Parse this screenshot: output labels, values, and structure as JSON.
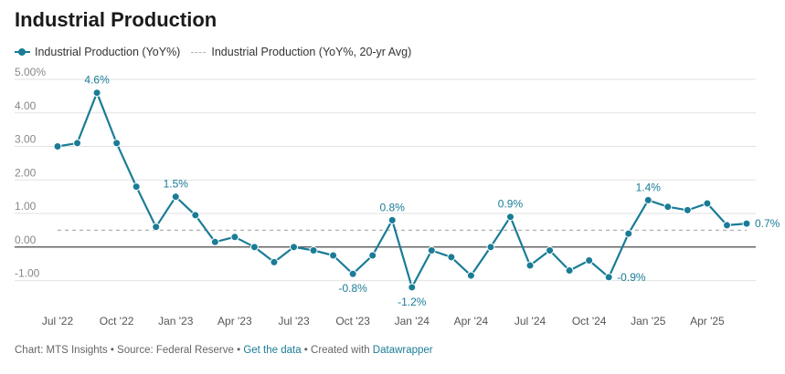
{
  "title": "Industrial Production",
  "legend": {
    "main": "Industrial Production (YoY%)",
    "avg": "Industrial Production (YoY%, 20-yr Avg)"
  },
  "colors": {
    "series": "#1a7c96",
    "average": "#b3b3b3",
    "grid": "#e2e2e2",
    "zero": "#333333",
    "text": "#333333",
    "muted": "#888888"
  },
  "chart_data": {
    "type": "line",
    "title": "Industrial Production",
    "ylim": [
      -1.8,
      5.0
    ],
    "yticks": [
      {
        "value": 5.0,
        "label": "5.00%"
      },
      {
        "value": 4.0,
        "label": "4.00"
      },
      {
        "value": 3.0,
        "label": "3.00"
      },
      {
        "value": 2.0,
        "label": "2.00"
      },
      {
        "value": 1.0,
        "label": "1.00"
      },
      {
        "value": 0.0,
        "label": "0.00"
      },
      {
        "value": -1.0,
        "label": "-1.00"
      }
    ],
    "xticks": [
      {
        "label": "Jul '22",
        "date": "2022-07"
      },
      {
        "label": "Oct '22",
        "date": "2022-10"
      },
      {
        "label": "Jan '23",
        "date": "2023-01"
      },
      {
        "label": "Apr '23",
        "date": "2023-04"
      },
      {
        "label": "Jul '23",
        "date": "2023-07"
      },
      {
        "label": "Oct '23",
        "date": "2023-10"
      },
      {
        "label": "Jan '24",
        "date": "2024-01"
      },
      {
        "label": "Apr '24",
        "date": "2024-04"
      },
      {
        "label": "Jul '24",
        "date": "2024-07"
      },
      {
        "label": "Oct '24",
        "date": "2024-10"
      },
      {
        "label": "Jan '25",
        "date": "2025-01"
      },
      {
        "label": "Apr '25",
        "date": "2025-04"
      }
    ],
    "series": [
      {
        "name": "Industrial Production (YoY%)",
        "points": [
          {
            "x": "2022-07",
            "y": 3.0
          },
          {
            "x": "2022-08",
            "y": 3.1
          },
          {
            "x": "2022-09",
            "y": 4.6,
            "label": "4.6%",
            "label_pos": "above"
          },
          {
            "x": "2022-10",
            "y": 3.1
          },
          {
            "x": "2022-11",
            "y": 1.8
          },
          {
            "x": "2022-12",
            "y": 0.6
          },
          {
            "x": "2023-01",
            "y": 1.5,
            "label": "1.5%",
            "label_pos": "above"
          },
          {
            "x": "2023-02",
            "y": 0.95
          },
          {
            "x": "2023-03",
            "y": 0.15
          },
          {
            "x": "2023-04",
            "y": 0.3
          },
          {
            "x": "2023-05",
            "y": 0.0
          },
          {
            "x": "2023-06",
            "y": -0.45
          },
          {
            "x": "2023-07",
            "y": 0.0
          },
          {
            "x": "2023-08",
            "y": -0.1
          },
          {
            "x": "2023-09",
            "y": -0.25
          },
          {
            "x": "2023-10",
            "y": -0.8,
            "label": "-0.8%",
            "label_pos": "below"
          },
          {
            "x": "2023-11",
            "y": -0.25
          },
          {
            "x": "2023-12",
            "y": 0.8,
            "label": "0.8%",
            "label_pos": "above"
          },
          {
            "x": "2024-01",
            "y": -1.2,
            "label": "-1.2%",
            "label_pos": "below"
          },
          {
            "x": "2024-02",
            "y": -0.1
          },
          {
            "x": "2024-03",
            "y": -0.3
          },
          {
            "x": "2024-04",
            "y": -0.85
          },
          {
            "x": "2024-05",
            "y": 0.0
          },
          {
            "x": "2024-06",
            "y": 0.9,
            "label": "0.9%",
            "label_pos": "above"
          },
          {
            "x": "2024-07",
            "y": -0.55
          },
          {
            "x": "2024-08",
            "y": -0.1
          },
          {
            "x": "2024-09",
            "y": -0.7
          },
          {
            "x": "2024-10",
            "y": -0.4
          },
          {
            "x": "2024-11",
            "y": -0.9,
            "label": "-0.9%",
            "label_pos": "right"
          },
          {
            "x": "2024-12",
            "y": 0.4
          },
          {
            "x": "2025-01",
            "y": 1.4,
            "label": "1.4%",
            "label_pos": "above"
          },
          {
            "x": "2025-02",
            "y": 1.2
          },
          {
            "x": "2025-03",
            "y": 1.1
          },
          {
            "x": "2025-04",
            "y": 1.3
          },
          {
            "x": "2025-05",
            "y": 0.65
          },
          {
            "x": "2025-06",
            "y": 0.7,
            "label": "0.7%",
            "label_pos": "right"
          }
        ]
      },
      {
        "name": "Industrial Production (YoY%, 20-yr Avg)",
        "style": "dashed",
        "value": 0.5
      }
    ],
    "grid": true,
    "legend_position": "top-left"
  },
  "footer": {
    "chart_by": "Chart: MTS Insights",
    "source": "Source: Federal Reserve",
    "get_data": "Get the data",
    "created_with": "Created with",
    "tool": "Datawrapper",
    "sep": " • "
  }
}
